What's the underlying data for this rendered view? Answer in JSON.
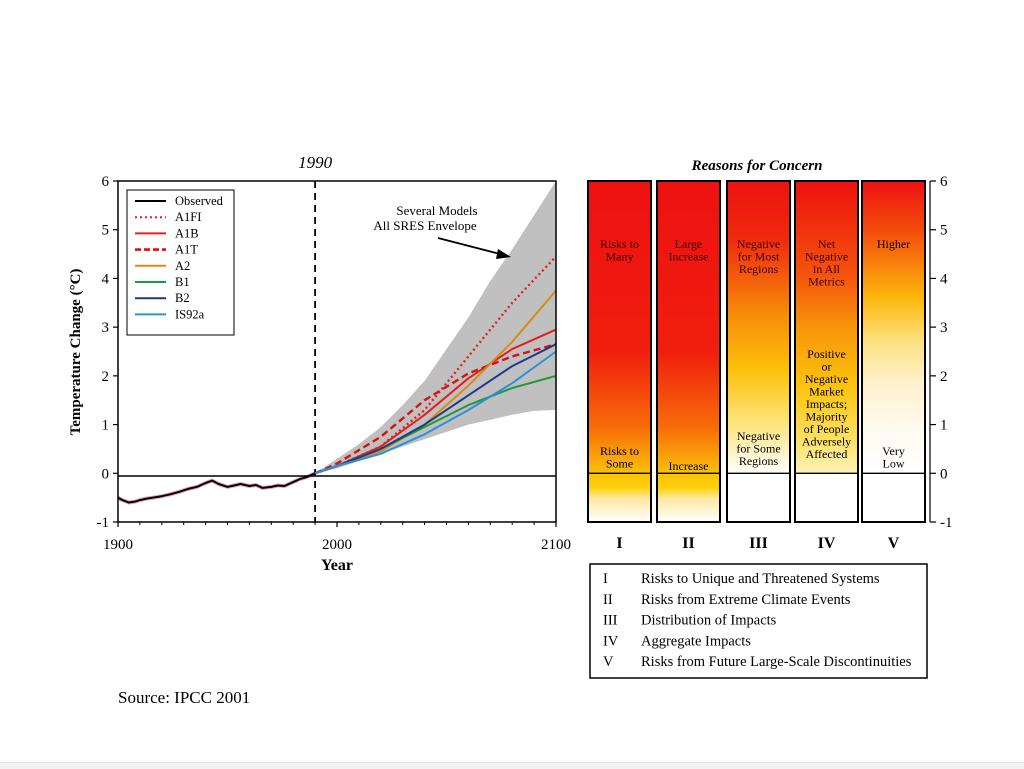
{
  "source_text": "Source: IPCC 2001",
  "colors": {
    "envelope": "#c0c0c0",
    "observed_pink": "#e8a3b8",
    "Observed": "#000000",
    "A1FI": "#e02020",
    "A1B": "#e02020",
    "A1T": "#d21414",
    "A2": "#d98a1a",
    "B1": "#1f9a3a",
    "B2": "#1e3a8a",
    "IS92a": "#2d8fd8"
  },
  "chart_data": [
    {
      "type": "line",
      "xlabel": "Year",
      "ylabel": "Temperature Change (°C)",
      "xlim": [
        1900,
        2100
      ],
      "ylim": [
        -1,
        6
      ],
      "x_ticks": [
        "1900",
        "2000",
        "2100"
      ],
      "y_ticks": [
        "-1",
        "0",
        "1",
        "2",
        "3",
        "4",
        "5",
        "6"
      ],
      "marker_label": "1990",
      "marker_year": 1990,
      "envelope_annotation": [
        "Several Models",
        "All SRES Envelope"
      ],
      "envelope": {
        "x": [
          1990,
          2000,
          2010,
          2020,
          2030,
          2040,
          2050,
          2060,
          2070,
          2080,
          2090,
          2100
        ],
        "upper": [
          0.0,
          0.3,
          0.6,
          0.95,
          1.4,
          1.9,
          2.55,
          3.2,
          3.95,
          4.6,
          5.3,
          6.0
        ],
        "lower": [
          0.0,
          0.1,
          0.25,
          0.4,
          0.55,
          0.7,
          0.85,
          1.0,
          1.1,
          1.2,
          1.28,
          1.3
        ]
      },
      "observed": {
        "x": [
          1900,
          1902,
          1905,
          1908,
          1910,
          1913,
          1916,
          1920,
          1924,
          1928,
          1932,
          1936,
          1940,
          1943,
          1946,
          1950,
          1953,
          1956,
          1960,
          1963,
          1966,
          1970,
          1973,
          1976,
          1980,
          1983,
          1986,
          1990
        ],
        "y": [
          -0.5,
          -0.55,
          -0.6,
          -0.58,
          -0.55,
          -0.52,
          -0.5,
          -0.47,
          -0.43,
          -0.38,
          -0.32,
          -0.28,
          -0.2,
          -0.15,
          -0.22,
          -0.28,
          -0.25,
          -0.22,
          -0.26,
          -0.24,
          -0.3,
          -0.28,
          -0.25,
          -0.26,
          -0.18,
          -0.12,
          -0.08,
          0.0
        ]
      },
      "series": [
        {
          "name": "A1FI",
          "x": [
            1990,
            2000,
            2020,
            2040,
            2060,
            2080,
            2100
          ],
          "y": [
            0.0,
            0.15,
            0.55,
            1.3,
            2.4,
            3.5,
            4.45
          ]
        },
        {
          "name": "A1B",
          "x": [
            1990,
            2000,
            2020,
            2040,
            2060,
            2080,
            2100
          ],
          "y": [
            0.0,
            0.15,
            0.55,
            1.2,
            1.95,
            2.55,
            2.95
          ]
        },
        {
          "name": "A1T",
          "x": [
            1990,
            2000,
            2020,
            2040,
            2060,
            2080,
            2100
          ],
          "y": [
            0.0,
            0.2,
            0.75,
            1.5,
            2.05,
            2.4,
            2.65
          ]
        },
        {
          "name": "A2",
          "x": [
            1990,
            2000,
            2020,
            2040,
            2060,
            2080,
            2100
          ],
          "y": [
            0.0,
            0.15,
            0.45,
            1.0,
            1.8,
            2.7,
            3.75
          ]
        },
        {
          "name": "B1",
          "x": [
            1990,
            2000,
            2020,
            2040,
            2060,
            2080,
            2100
          ],
          "y": [
            0.0,
            0.15,
            0.5,
            0.95,
            1.4,
            1.75,
            2.0
          ]
        },
        {
          "name": "B2",
          "x": [
            1990,
            2000,
            2020,
            2040,
            2060,
            2080,
            2100
          ],
          "y": [
            0.0,
            0.15,
            0.5,
            1.0,
            1.6,
            2.2,
            2.65
          ]
        },
        {
          "name": "IS92a",
          "x": [
            1990,
            2000,
            2020,
            2040,
            2060,
            2080,
            2100
          ],
          "y": [
            0.0,
            0.15,
            0.4,
            0.8,
            1.3,
            1.85,
            2.5
          ]
        }
      ],
      "legend": [
        "Observed",
        "A1FI",
        "A1B",
        "A1T",
        "A2",
        "B1",
        "B2",
        "IS92a"
      ],
      "legend_position": "top-left",
      "grid": false
    },
    {
      "type": "heatmap",
      "title": "Reasons for Concern",
      "ylim": [
        -1,
        6
      ],
      "y_ticks": [
        "-1",
        "0",
        "1",
        "2",
        "3",
        "4",
        "5",
        "6"
      ],
      "columns": [
        {
          "numeral": "I",
          "upper_label": [
            "Risks to",
            "Many"
          ],
          "lower_label": [
            "Risks to",
            "Some"
          ]
        },
        {
          "numeral": "II",
          "upper_label": [
            "Large",
            "Increase"
          ],
          "lower_label": [
            "Increase"
          ]
        },
        {
          "numeral": "III",
          "upper_label": [
            "Negative",
            "for Most",
            "Regions"
          ],
          "lower_label": [
            "Negative",
            "for Some",
            "Regions"
          ]
        },
        {
          "numeral": "IV",
          "upper_label": [
            "Net",
            "Negative",
            "in All",
            "Metrics"
          ],
          "lower_label": [
            "Positive",
            "or",
            "Negative",
            "Market",
            "Impacts;",
            "Majority",
            "of People",
            "Adversely",
            "Affected"
          ]
        },
        {
          "numeral": "V",
          "upper_label": [
            "Higher"
          ],
          "lower_label": [
            "Very",
            "Low"
          ]
        }
      ],
      "key": [
        {
          "numeral": "I",
          "text": "Risks to Unique and Threatened Systems"
        },
        {
          "numeral": "II",
          "text": "Risks from Extreme Climate Events"
        },
        {
          "numeral": "III",
          "text": "Distribution of Impacts"
        },
        {
          "numeral": "IV",
          "text": "Aggregate Impacts"
        },
        {
          "numeral": "V",
          "text": "Risks from Future Large-Scale Discontinuities"
        }
      ]
    }
  ]
}
